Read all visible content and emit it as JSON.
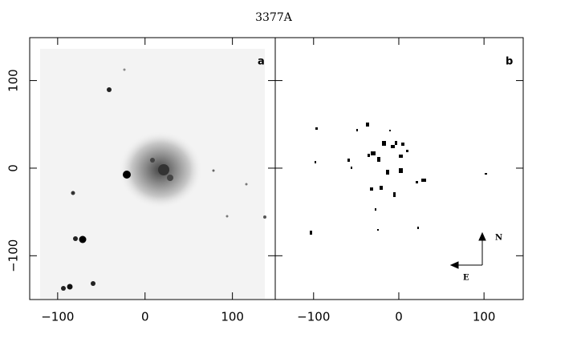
{
  "title": "3377A",
  "compass": {
    "north": "N",
    "east": "E"
  },
  "chart_data": [
    {
      "type": "image",
      "panel_label": "a",
      "xlim": [
        -132,
        149
      ],
      "ylim": [
        -150,
        149
      ],
      "xticks": [
        {
          "value": -100,
          "label": "−100"
        },
        0,
        100
      ],
      "yticks": [
        {
          "value": -100,
          "label": "−100"
        },
        0,
        100
      ]
    },
    {
      "type": "image",
      "panel_label": "b",
      "xlim": [
        -145,
        146
      ],
      "ylim": [
        -150,
        149
      ],
      "xticks": [
        {
          "value": -100,
          "label": "−100"
        },
        0,
        100
      ]
    }
  ]
}
